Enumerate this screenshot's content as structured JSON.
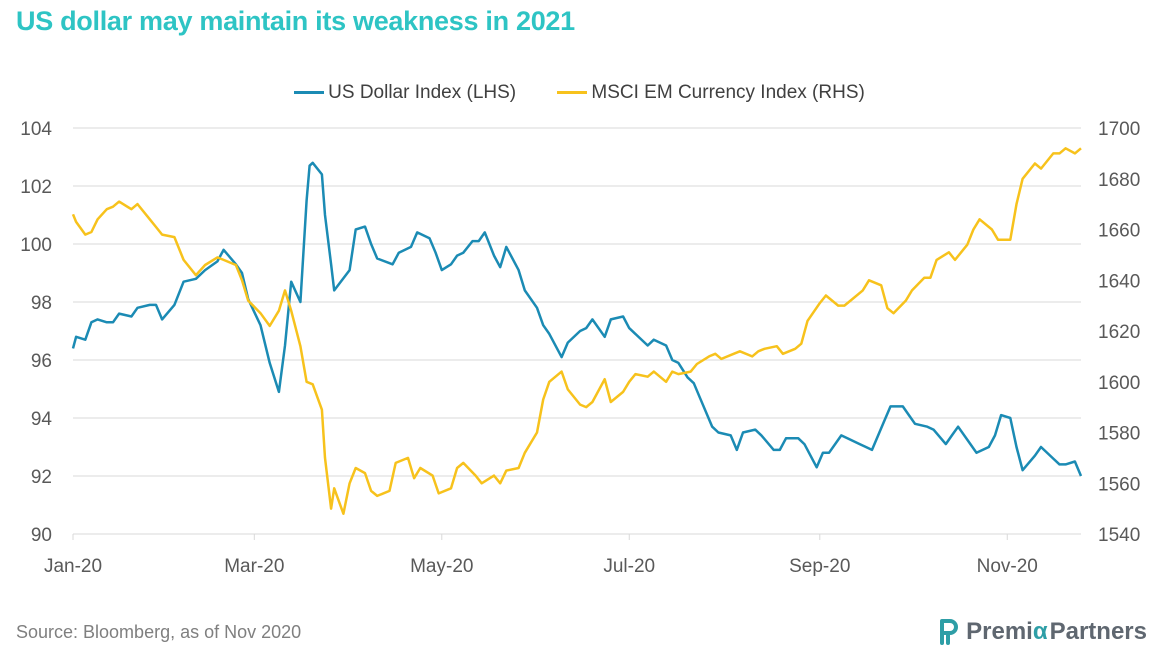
{
  "title": "US dollar may maintain its weakness in 2021",
  "source": "Source:  Bloomberg,  as of Nov 2020",
  "logo": {
    "name": "Premia Partners",
    "text_a": "Premi",
    "alpha": "α",
    "text_b": "Partners",
    "color": "#5f6770",
    "mark_color": "#2e9ea6"
  },
  "chart_data": {
    "type": "line",
    "title": "US dollar may maintain its weakness in 2021",
    "x_ticks": [
      "Jan-20",
      "Mar-20",
      "May-20",
      "Jul-20",
      "Sep-20",
      "Nov-20"
    ],
    "y_left": {
      "range": [
        90,
        104
      ],
      "ticks": [
        "90",
        "92",
        "94",
        "96",
        "98",
        "100",
        "102",
        "104"
      ]
    },
    "y_right": {
      "range": [
        1540,
        1700
      ],
      "ticks": [
        "1540",
        "1560",
        "1580",
        "1600",
        "1620",
        "1640",
        "1660",
        "1680",
        "1700"
      ]
    },
    "grid": true,
    "legend": "top",
    "x_range": [
      "2020-01-02",
      "2020-11-25"
    ],
    "series": [
      {
        "name": "US Dollar Index (LHS)",
        "axis": "left",
        "color": "#1b8bb4",
        "points": [
          [
            "2020-01-02",
            96.4
          ],
          [
            "2020-01-03",
            96.8
          ],
          [
            "2020-01-06",
            96.7
          ],
          [
            "2020-01-08",
            97.3
          ],
          [
            "2020-01-10",
            97.4
          ],
          [
            "2020-01-13",
            97.3
          ],
          [
            "2020-01-15",
            97.3
          ],
          [
            "2020-01-17",
            97.6
          ],
          [
            "2020-01-21",
            97.5
          ],
          [
            "2020-01-23",
            97.8
          ],
          [
            "2020-01-27",
            97.9
          ],
          [
            "2020-01-29",
            97.9
          ],
          [
            "2020-01-31",
            97.4
          ],
          [
            "2020-02-04",
            97.9
          ],
          [
            "2020-02-07",
            98.7
          ],
          [
            "2020-02-11",
            98.8
          ],
          [
            "2020-02-14",
            99.1
          ],
          [
            "2020-02-18",
            99.4
          ],
          [
            "2020-02-20",
            99.8
          ],
          [
            "2020-02-24",
            99.3
          ],
          [
            "2020-02-26",
            99.0
          ],
          [
            "2020-02-28",
            98.1
          ],
          [
            "2020-03-03",
            97.2
          ],
          [
            "2020-03-06",
            95.9
          ],
          [
            "2020-03-09",
            94.9
          ],
          [
            "2020-03-11",
            96.5
          ],
          [
            "2020-03-13",
            98.7
          ],
          [
            "2020-03-16",
            98.0
          ],
          [
            "2020-03-18",
            101.5
          ],
          [
            "2020-03-19",
            102.7
          ],
          [
            "2020-03-20",
            102.8
          ],
          [
            "2020-03-23",
            102.4
          ],
          [
            "2020-03-24",
            101.0
          ],
          [
            "2020-03-26",
            99.3
          ],
          [
            "2020-03-27",
            98.4
          ],
          [
            "2020-04-01",
            99.1
          ],
          [
            "2020-04-03",
            100.5
          ],
          [
            "2020-04-06",
            100.6
          ],
          [
            "2020-04-08",
            100.0
          ],
          [
            "2020-04-10",
            99.5
          ],
          [
            "2020-04-15",
            99.3
          ],
          [
            "2020-04-17",
            99.7
          ],
          [
            "2020-04-21",
            99.9
          ],
          [
            "2020-04-23",
            100.4
          ],
          [
            "2020-04-27",
            100.2
          ],
          [
            "2020-04-29",
            99.7
          ],
          [
            "2020-05-01",
            99.1
          ],
          [
            "2020-05-04",
            99.3
          ],
          [
            "2020-05-06",
            99.6
          ],
          [
            "2020-05-08",
            99.7
          ],
          [
            "2020-05-11",
            100.1
          ],
          [
            "2020-05-13",
            100.1
          ],
          [
            "2020-05-15",
            100.4
          ],
          [
            "2020-05-18",
            99.6
          ],
          [
            "2020-05-20",
            99.2
          ],
          [
            "2020-05-22",
            99.9
          ],
          [
            "2020-05-26",
            99.1
          ],
          [
            "2020-05-28",
            98.4
          ],
          [
            "2020-06-01",
            97.8
          ],
          [
            "2020-06-03",
            97.2
          ],
          [
            "2020-06-05",
            96.9
          ],
          [
            "2020-06-09",
            96.1
          ],
          [
            "2020-06-11",
            96.6
          ],
          [
            "2020-06-15",
            97.0
          ],
          [
            "2020-06-17",
            97.1
          ],
          [
            "2020-06-19",
            97.4
          ],
          [
            "2020-06-23",
            96.8
          ],
          [
            "2020-06-25",
            97.4
          ],
          [
            "2020-06-29",
            97.5
          ],
          [
            "2020-07-01",
            97.1
          ],
          [
            "2020-07-03",
            96.9
          ],
          [
            "2020-07-07",
            96.5
          ],
          [
            "2020-07-09",
            96.7
          ],
          [
            "2020-07-13",
            96.5
          ],
          [
            "2020-07-15",
            96.0
          ],
          [
            "2020-07-17",
            95.9
          ],
          [
            "2020-07-20",
            95.4
          ],
          [
            "2020-07-22",
            95.2
          ],
          [
            "2020-07-24",
            94.7
          ],
          [
            "2020-07-28",
            93.7
          ],
          [
            "2020-07-30",
            93.5
          ],
          [
            "2020-08-03",
            93.4
          ],
          [
            "2020-08-05",
            92.9
          ],
          [
            "2020-08-07",
            93.5
          ],
          [
            "2020-08-11",
            93.6
          ],
          [
            "2020-08-13",
            93.4
          ],
          [
            "2020-08-17",
            92.9
          ],
          [
            "2020-08-19",
            92.9
          ],
          [
            "2020-08-21",
            93.3
          ],
          [
            "2020-08-25",
            93.3
          ],
          [
            "2020-08-27",
            93.1
          ],
          [
            "2020-08-31",
            92.3
          ],
          [
            "2020-09-02",
            92.8
          ],
          [
            "2020-09-04",
            92.8
          ],
          [
            "2020-09-08",
            93.4
          ],
          [
            "2020-09-10",
            93.3
          ],
          [
            "2020-09-14",
            93.1
          ],
          [
            "2020-09-16",
            93.0
          ],
          [
            "2020-09-18",
            92.9
          ],
          [
            "2020-09-22",
            93.9
          ],
          [
            "2020-09-24",
            94.4
          ],
          [
            "2020-09-28",
            94.4
          ],
          [
            "2020-09-30",
            94.1
          ],
          [
            "2020-10-02",
            93.8
          ],
          [
            "2020-10-06",
            93.7
          ],
          [
            "2020-10-08",
            93.6
          ],
          [
            "2020-10-12",
            93.1
          ],
          [
            "2020-10-14",
            93.4
          ],
          [
            "2020-10-16",
            93.7
          ],
          [
            "2020-10-20",
            93.1
          ],
          [
            "2020-10-22",
            92.8
          ],
          [
            "2020-10-26",
            93.0
          ],
          [
            "2020-10-28",
            93.4
          ],
          [
            "2020-10-30",
            94.1
          ],
          [
            "2020-11-02",
            94.0
          ],
          [
            "2020-11-04",
            93.0
          ],
          [
            "2020-11-06",
            92.2
          ],
          [
            "2020-11-10",
            92.7
          ],
          [
            "2020-11-12",
            93.0
          ],
          [
            "2020-11-16",
            92.6
          ],
          [
            "2020-11-18",
            92.4
          ],
          [
            "2020-11-20",
            92.4
          ],
          [
            "2020-11-23",
            92.5
          ],
          [
            "2020-11-25",
            92.0
          ]
        ]
      },
      {
        "name": "MSCI EM Currency Index (RHS)",
        "axis": "right",
        "color": "#f7c21c",
        "points": [
          [
            "2020-01-02",
            1666
          ],
          [
            "2020-01-03",
            1663
          ],
          [
            "2020-01-06",
            1658
          ],
          [
            "2020-01-08",
            1659
          ],
          [
            "2020-01-10",
            1664
          ],
          [
            "2020-01-13",
            1668
          ],
          [
            "2020-01-15",
            1669
          ],
          [
            "2020-01-17",
            1671
          ],
          [
            "2020-01-21",
            1668
          ],
          [
            "2020-01-23",
            1670
          ],
          [
            "2020-01-27",
            1664
          ],
          [
            "2020-01-29",
            1661
          ],
          [
            "2020-01-31",
            1658
          ],
          [
            "2020-02-04",
            1657
          ],
          [
            "2020-02-07",
            1648
          ],
          [
            "2020-02-11",
            1642
          ],
          [
            "2020-02-14",
            1646
          ],
          [
            "2020-02-18",
            1649
          ],
          [
            "2020-02-20",
            1648
          ],
          [
            "2020-02-24",
            1646
          ],
          [
            "2020-02-26",
            1640
          ],
          [
            "2020-02-28",
            1632
          ],
          [
            "2020-03-03",
            1627
          ],
          [
            "2020-03-06",
            1622
          ],
          [
            "2020-03-09",
            1628
          ],
          [
            "2020-03-11",
            1636
          ],
          [
            "2020-03-13",
            1628
          ],
          [
            "2020-03-16",
            1614
          ],
          [
            "2020-03-18",
            1600
          ],
          [
            "2020-03-20",
            1599
          ],
          [
            "2020-03-23",
            1589
          ],
          [
            "2020-03-24",
            1570
          ],
          [
            "2020-03-26",
            1550
          ],
          [
            "2020-03-27",
            1558
          ],
          [
            "2020-03-30",
            1548
          ],
          [
            "2020-04-01",
            1560
          ],
          [
            "2020-04-03",
            1566
          ],
          [
            "2020-04-06",
            1564
          ],
          [
            "2020-04-08",
            1557
          ],
          [
            "2020-04-10",
            1555
          ],
          [
            "2020-04-14",
            1557
          ],
          [
            "2020-04-16",
            1568
          ],
          [
            "2020-04-20",
            1570
          ],
          [
            "2020-04-22",
            1562
          ],
          [
            "2020-04-24",
            1566
          ],
          [
            "2020-04-28",
            1563
          ],
          [
            "2020-04-30",
            1556
          ],
          [
            "2020-05-04",
            1558
          ],
          [
            "2020-05-06",
            1566
          ],
          [
            "2020-05-08",
            1568
          ],
          [
            "2020-05-12",
            1563
          ],
          [
            "2020-05-14",
            1560
          ],
          [
            "2020-05-18",
            1563
          ],
          [
            "2020-05-20",
            1560
          ],
          [
            "2020-05-22",
            1565
          ],
          [
            "2020-05-26",
            1566
          ],
          [
            "2020-05-28",
            1572
          ],
          [
            "2020-06-01",
            1580
          ],
          [
            "2020-06-03",
            1593
          ],
          [
            "2020-06-05",
            1600
          ],
          [
            "2020-06-09",
            1604
          ],
          [
            "2020-06-11",
            1597
          ],
          [
            "2020-06-15",
            1591
          ],
          [
            "2020-06-17",
            1590
          ],
          [
            "2020-06-19",
            1592
          ],
          [
            "2020-06-23",
            1601
          ],
          [
            "2020-06-25",
            1592
          ],
          [
            "2020-06-29",
            1596
          ],
          [
            "2020-07-01",
            1600
          ],
          [
            "2020-07-03",
            1603
          ],
          [
            "2020-07-07",
            1602
          ],
          [
            "2020-07-09",
            1604
          ],
          [
            "2020-07-13",
            1600
          ],
          [
            "2020-07-15",
            1604
          ],
          [
            "2020-07-17",
            1603
          ],
          [
            "2020-07-21",
            1604
          ],
          [
            "2020-07-23",
            1607
          ],
          [
            "2020-07-27",
            1610
          ],
          [
            "2020-07-29",
            1611
          ],
          [
            "2020-07-31",
            1609
          ],
          [
            "2020-08-04",
            1611
          ],
          [
            "2020-08-06",
            1612
          ],
          [
            "2020-08-10",
            1610
          ],
          [
            "2020-08-12",
            1612
          ],
          [
            "2020-08-14",
            1613
          ],
          [
            "2020-08-18",
            1614
          ],
          [
            "2020-08-20",
            1611
          ],
          [
            "2020-08-24",
            1613
          ],
          [
            "2020-08-26",
            1615
          ],
          [
            "2020-08-28",
            1624
          ],
          [
            "2020-09-01",
            1631
          ],
          [
            "2020-09-03",
            1634
          ],
          [
            "2020-09-07",
            1630
          ],
          [
            "2020-09-09",
            1630
          ],
          [
            "2020-09-11",
            1632
          ],
          [
            "2020-09-15",
            1636
          ],
          [
            "2020-09-17",
            1640
          ],
          [
            "2020-09-21",
            1638
          ],
          [
            "2020-09-23",
            1629
          ],
          [
            "2020-09-25",
            1627
          ],
          [
            "2020-09-29",
            1632
          ],
          [
            "2020-10-01",
            1636
          ],
          [
            "2020-10-05",
            1641
          ],
          [
            "2020-10-07",
            1641
          ],
          [
            "2020-10-09",
            1648
          ],
          [
            "2020-10-13",
            1651
          ],
          [
            "2020-10-15",
            1648
          ],
          [
            "2020-10-19",
            1654
          ],
          [
            "2020-10-21",
            1660
          ],
          [
            "2020-10-23",
            1664
          ],
          [
            "2020-10-27",
            1660
          ],
          [
            "2020-10-29",
            1656
          ],
          [
            "2020-11-02",
            1656
          ],
          [
            "2020-11-04",
            1670
          ],
          [
            "2020-11-06",
            1680
          ],
          [
            "2020-11-10",
            1686
          ],
          [
            "2020-11-12",
            1684
          ],
          [
            "2020-11-16",
            1690
          ],
          [
            "2020-11-18",
            1690
          ],
          [
            "2020-11-20",
            1692
          ],
          [
            "2020-11-23",
            1690
          ],
          [
            "2020-11-25",
            1692
          ]
        ]
      }
    ]
  }
}
